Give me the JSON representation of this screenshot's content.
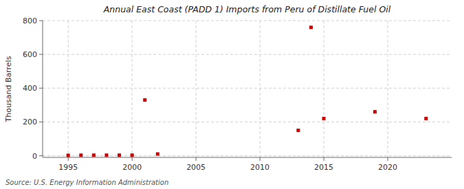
{
  "chart_data": {
    "type": "scatter",
    "title": "Annual East Coast (PADD 1) Imports from Peru of Distillate Fuel Oil",
    "ylabel": "Thousand Barrels",
    "annotations": [
      "Source: U.S. Energy Information Administration"
    ],
    "x": [
      1995,
      1996,
      1997,
      1998,
      1999,
      2000,
      2001,
      2002,
      2013,
      2014,
      2015,
      2019,
      2023
    ],
    "values": [
      2,
      3,
      3,
      3,
      3,
      3,
      330,
      10,
      150,
      760,
      220,
      260,
      220
    ],
    "color": "#cc0000",
    "marker": "square",
    "xlim": [
      1993,
      2025
    ],
    "ylim": [
      -10,
      800
    ],
    "xticks": [
      1995,
      2000,
      2005,
      2010,
      2015,
      2020
    ],
    "yticks": [
      0,
      200,
      400,
      600,
      800
    ],
    "grid": true
  }
}
